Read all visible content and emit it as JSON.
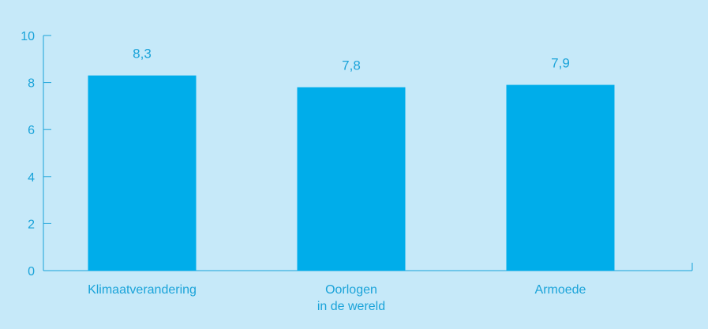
{
  "colors": {
    "background": "#c6e9f9",
    "bar": "#00adea",
    "axis": "#1aa3d9",
    "text": "#1aa3d9"
  },
  "chart_data": {
    "type": "bar",
    "title": "",
    "xlabel": "",
    "ylabel": "",
    "categories": [
      [
        "Klimaatverandering"
      ],
      [
        "Oorlogen",
        "in de wereld"
      ],
      [
        "Armoede"
      ]
    ],
    "values": [
      8.3,
      7.8,
      7.9
    ],
    "value_labels": [
      "8,3",
      "7,8",
      "7,9"
    ],
    "ylim": [
      0,
      10
    ],
    "yticks": [
      0,
      2,
      4,
      6,
      8,
      10
    ],
    "ytick_labels": [
      "0",
      "2",
      "4",
      "6",
      "8",
      "10"
    ],
    "grid": false,
    "legend": "none"
  }
}
